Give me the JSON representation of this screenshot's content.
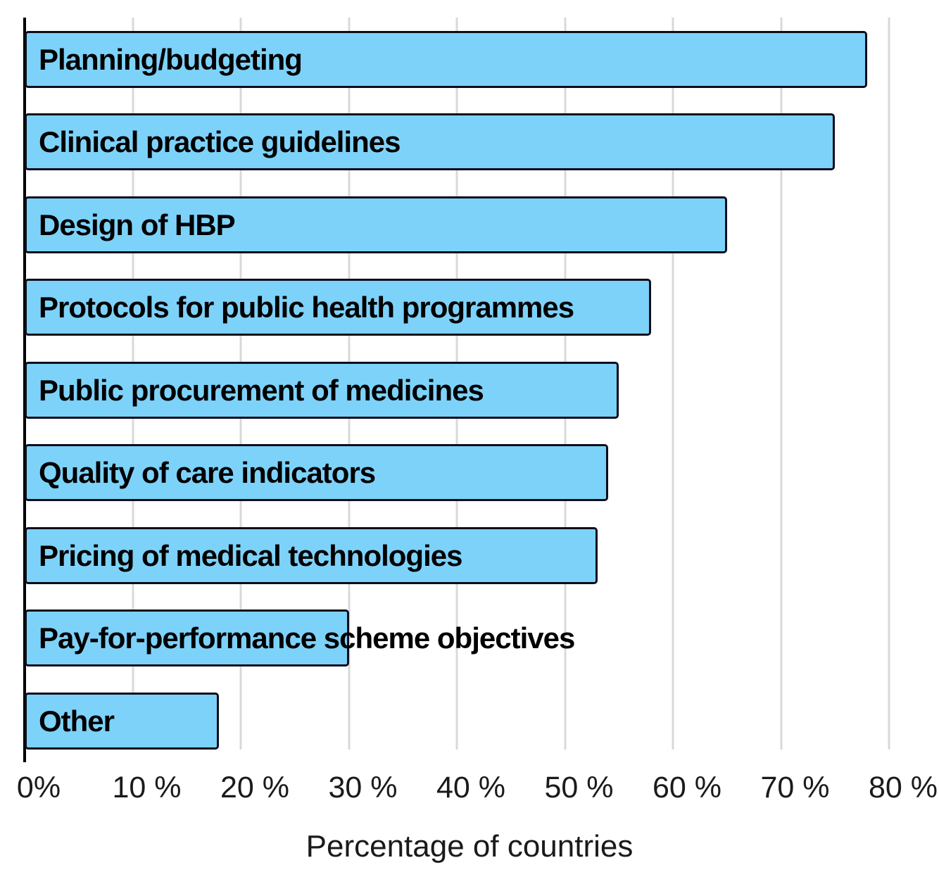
{
  "chart_data": {
    "type": "bar",
    "orientation": "horizontal",
    "title": "",
    "xlabel": "Percentage of countries",
    "categories": [
      "Planning/budgeting",
      "Clinical practice guidelines",
      "Design of HBP",
      "Protocols for public health programmes",
      "Public procurement of medicines",
      "Quality of care indicators",
      "Pricing of medical technologies",
      "Pay-for-performance scheme objectives",
      "Other"
    ],
    "values": [
      78,
      75,
      65,
      58,
      55,
      54,
      53,
      30,
      18
    ],
    "value_unit": "percent of countries",
    "xlim": [
      0,
      80
    ],
    "xtick_step": 10,
    "xtick_labels": [
      "0%",
      "10 %",
      "20 %",
      "30 %",
      "40 %",
      "50 %",
      "60 %",
      "70 %",
      "80 %"
    ],
    "grid": "vertical gridlines",
    "legend": "none",
    "bar_labels_position": "inside-left",
    "colors": {
      "bar_fill": "#7DD2FA",
      "bar_border": "#0D0D1A",
      "gridline": "#D9D9D9",
      "axis_line": "#000000",
      "text": "#000000"
    }
  }
}
